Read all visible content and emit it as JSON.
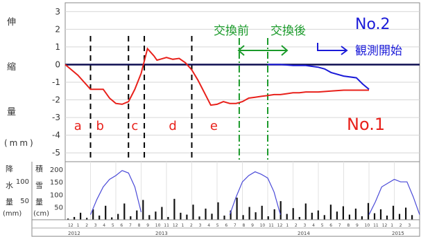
{
  "chart_data": [
    {
      "type": "line",
      "ylabel_chars": [
        "伸",
        "縮",
        "量"
      ],
      "yunit": "(mm)",
      "ylim": [
        -5.5,
        3.5
      ],
      "yticks": [
        3,
        2,
        1,
        0,
        -1,
        -2,
        -3,
        -4,
        -5
      ],
      "grid": true,
      "series": [
        {
          "name": "No.1",
          "color": "#e8201a",
          "x": [
            0,
            2,
            4,
            6,
            7,
            8,
            9,
            10,
            11,
            12,
            13,
            14,
            14.5,
            15,
            16,
            17,
            18,
            19,
            20,
            21,
            22,
            23,
            24,
            25,
            26,
            27,
            28,
            29,
            30,
            31,
            32,
            33,
            34,
            35,
            36,
            37,
            38,
            40,
            42,
            44,
            46,
            48
          ],
          "y": [
            0,
            -0.6,
            -1.4,
            -1.4,
            -1.9,
            -2.2,
            -2.25,
            -2.1,
            -1.4,
            -0.5,
            0.9,
            0.5,
            0.25,
            0.3,
            0.4,
            0.3,
            0.35,
            0.1,
            -0.3,
            -0.9,
            -1.6,
            -2.3,
            -2.25,
            -2.1,
            -2.2,
            -2.2,
            -2.1,
            -1.9,
            -1.85,
            -1.8,
            -1.75,
            -1.7,
            -1.7,
            -1.65,
            -1.6,
            -1.6,
            -1.55,
            -1.55,
            -1.5,
            -1.45,
            -1.45,
            -1.45
          ]
        },
        {
          "name": "No.2",
          "color": "#1a1ad8",
          "x": [
            32,
            34,
            36,
            38,
            40,
            41,
            42,
            44,
            46,
            47,
            48
          ],
          "y": [
            0,
            0,
            -0.05,
            -0.05,
            -0.15,
            -0.25,
            -0.45,
            -0.65,
            -0.75,
            -1.1,
            -1.4
          ]
        }
      ],
      "reference_line": {
        "y": 0,
        "color": "#0c0c50"
      },
      "period_markers": [
        {
          "x": 4,
          "style": "dashed",
          "color": "#000000"
        },
        {
          "x": 10,
          "style": "dashed",
          "color": "#000000"
        },
        {
          "x": 12.5,
          "style": "dashed",
          "color": "#000000"
        },
        {
          "x": 20,
          "style": "dashed",
          "color": "#000000"
        },
        {
          "x": 27.5,
          "style": "dashdot",
          "color": "#1a9a2a"
        },
        {
          "x": 32,
          "style": "dashdot",
          "color": "#1a9a2a"
        }
      ],
      "period_labels": [
        {
          "text": "a",
          "x": 2
        },
        {
          "text": "b",
          "x": 5.5
        },
        {
          "text": "c",
          "x": 11
        },
        {
          "text": "d",
          "x": 17
        },
        {
          "text": "e",
          "x": 23.5
        }
      ],
      "annotations": {
        "before_exchange": "交換前",
        "after_exchange": "交換後",
        "no2_label": "No.2",
        "start_obs": "観測開始",
        "no1_label": "No.1"
      },
      "colors": {
        "annotation_green": "#1a9a2a",
        "label_red": "#e8201a",
        "label_blue": "#1a1ad8"
      }
    },
    {
      "type": "bar",
      "left_label_chars": [
        "降",
        "水",
        "量"
      ],
      "left_unit": "(mm)",
      "left_ticks": [
        100,
        50
      ],
      "right_label_chars": [
        "積",
        "雪",
        "量"
      ],
      "right_unit": "(cm)",
      "right_ticks": [
        200,
        150,
        100,
        50
      ],
      "snow_series": {
        "name": "積雪量",
        "color": "#4a4ad8",
        "segments": [
          {
            "x": [
              4,
              5,
              6,
              7,
              8,
              9,
              10,
              11,
              12
            ],
            "y": [
              20,
              80,
              130,
              160,
              175,
              195,
              185,
              130,
              30
            ]
          },
          {
            "x": [
              26,
              27,
              28,
              29,
              30,
              31,
              32,
              33,
              34
            ],
            "y": [
              20,
              90,
              150,
              175,
              190,
              180,
              165,
              110,
              20
            ]
          },
          {
            "x": [
              48,
              49,
              50,
              51,
              52,
              53,
              54,
              55,
              56
            ],
            "y": [
              20,
              70,
              130,
              145,
              160,
              150,
              150,
              90,
              20
            ]
          }
        ]
      },
      "rain_values": [
        5,
        12,
        30,
        8,
        45,
        18,
        60,
        10,
        25,
        70,
        15,
        40,
        85,
        20,
        35,
        55,
        12,
        90,
        30,
        22,
        65,
        14,
        48,
        26,
        75,
        18,
        40,
        95,
        20,
        55,
        32,
        60,
        15,
        45,
        80,
        25,
        50,
        12,
        70,
        30,
        40,
        20,
        65,
        35,
        58,
        22,
        48,
        15,
        72,
        28,
        45,
        18,
        60,
        25,
        52,
        20
      ]
    }
  ],
  "time_axis": {
    "years": [
      "2012",
      "2013",
      "2014",
      "2015"
    ],
    "months": [
      "12",
      "1",
      "2",
      "3",
      "4",
      "5",
      "6",
      "7",
      "8",
      "9",
      "10",
      "11",
      "12",
      "1",
      "2",
      "3",
      "4",
      "5",
      "6",
      "7",
      "8",
      "9",
      "10",
      "11",
      "12",
      "1",
      "2",
      "3",
      "4",
      "5",
      "6",
      "7",
      "8",
      "9",
      "10",
      "11",
      "12",
      "1",
      "2",
      "3"
    ]
  }
}
